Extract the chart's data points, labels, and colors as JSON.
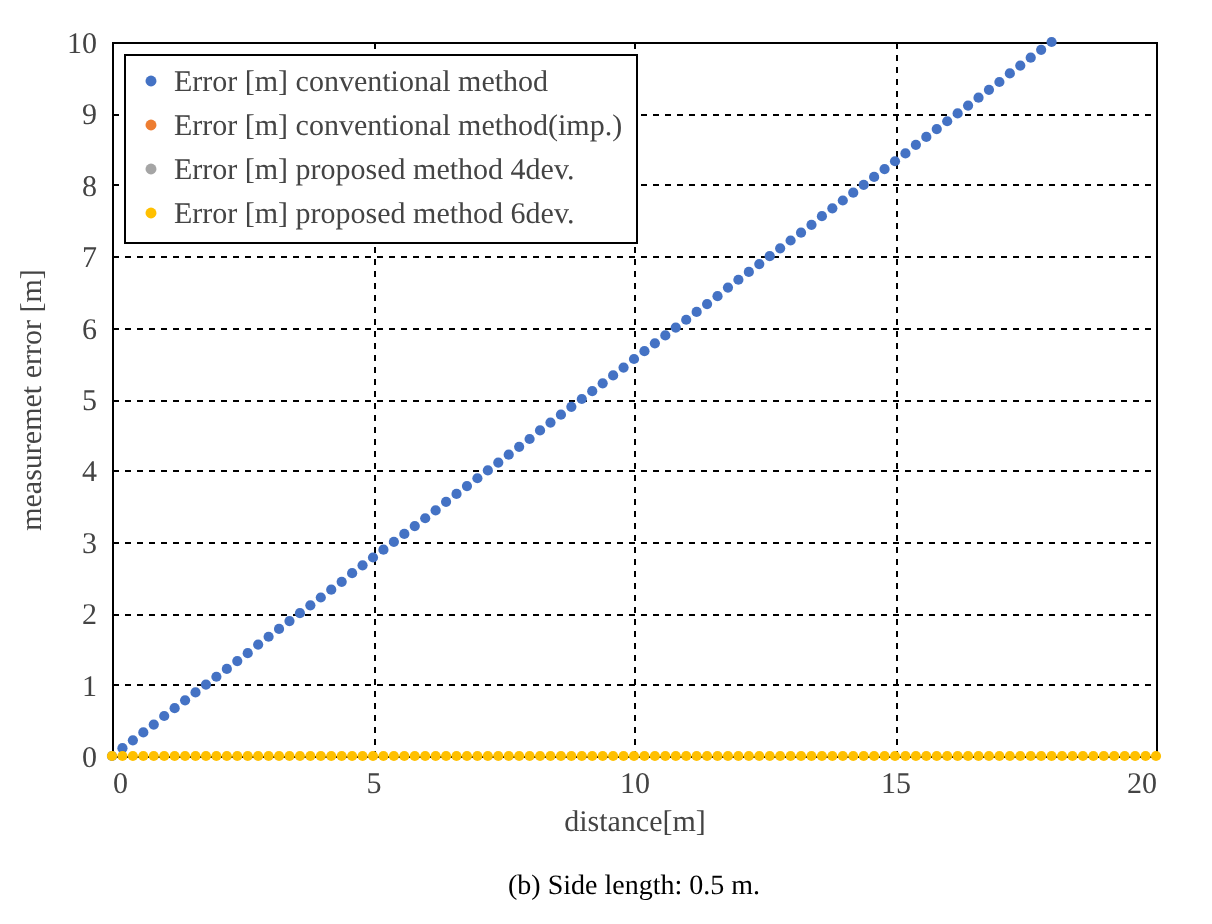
{
  "chart_data": {
    "type": "scatter",
    "xlabel": "distance[m]",
    "ylabel": "measuremet error [m]",
    "annotations": [
      "(b) Side length: 0.5 m."
    ],
    "x": [
      0,
      0.2,
      0.4,
      0.6,
      0.8,
      1,
      1.2,
      1.4,
      1.6,
      1.8,
      2,
      2.2,
      2.4,
      2.6,
      2.8,
      3,
      3.2,
      3.4,
      3.6,
      3.8,
      4,
      4.2,
      4.4,
      4.6,
      4.8,
      5,
      5.2,
      5.4,
      5.6,
      5.8,
      6,
      6.2,
      6.4,
      6.6,
      6.8,
      7,
      7.2,
      7.4,
      7.6,
      7.8,
      8,
      8.2,
      8.4,
      8.6,
      8.8,
      9,
      9.2,
      9.4,
      9.6,
      9.8,
      10,
      10.2,
      10.4,
      10.6,
      10.8,
      11,
      11.2,
      11.4,
      11.6,
      11.8,
      12,
      12.2,
      12.4,
      12.6,
      12.8,
      13,
      13.2,
      13.4,
      13.6,
      13.8,
      14,
      14.2,
      14.4,
      14.6,
      14.8,
      15,
      15.2,
      15.4,
      15.6,
      15.8,
      16,
      16.2,
      16.4,
      16.6,
      16.8,
      17,
      17.2,
      17.4,
      17.6,
      17.8,
      18,
      18.2,
      18.4,
      18.6,
      18.8,
      19,
      19.2,
      19.4,
      19.6,
      19.8,
      20
    ],
    "series": [
      {
        "name": "Error [m] conventional method",
        "color": "#4472c4",
        "values": [
          0,
          0.11,
          0.22,
          0.33,
          0.44,
          0.56,
          0.67,
          0.78,
          0.89,
          1,
          1.11,
          1.22,
          1.33,
          1.44,
          1.56,
          1.67,
          1.78,
          1.89,
          2,
          2.11,
          2.22,
          2.33,
          2.44,
          2.56,
          2.67,
          2.78,
          2.89,
          3,
          3.11,
          3.22,
          3.33,
          3.44,
          3.56,
          3.67,
          3.78,
          3.89,
          4,
          4.11,
          4.22,
          4.33,
          4.44,
          4.56,
          4.67,
          4.78,
          4.89,
          5,
          5.11,
          5.22,
          5.33,
          5.44,
          5.56,
          5.67,
          5.78,
          5.89,
          6,
          6.11,
          6.22,
          6.33,
          6.44,
          6.56,
          6.67,
          6.78,
          6.89,
          7,
          7.11,
          7.22,
          7.33,
          7.44,
          7.56,
          7.67,
          7.78,
          7.89,
          8,
          8.11,
          8.22,
          8.33,
          8.44,
          8.56,
          8.67,
          8.78,
          8.89,
          9,
          9.11,
          9.22,
          9.33,
          9.44,
          9.56,
          9.67,
          9.78,
          9.89,
          10,
          null,
          null,
          null,
          null,
          null,
          null,
          null,
          null,
          null,
          null
        ]
      },
      {
        "name": "Error [m] conventional method(imp.)",
        "color": "#ed7d31",
        "values": [
          null,
          null,
          null,
          null,
          null,
          null,
          null,
          null,
          null,
          null,
          null,
          null,
          null,
          null,
          null,
          null,
          null,
          null,
          null,
          null,
          null,
          null,
          null,
          null,
          null,
          null,
          null,
          null,
          null,
          null,
          null,
          null,
          null,
          null,
          null,
          null,
          null,
          null,
          null,
          null,
          null,
          null,
          null,
          null,
          null,
          null,
          null,
          null,
          null,
          null,
          null,
          null,
          null,
          null,
          null,
          null,
          null,
          null,
          null,
          null,
          null,
          null,
          null,
          null,
          null,
          null,
          null,
          null,
          null,
          null,
          null,
          null,
          null,
          null,
          null,
          null,
          null,
          null,
          null,
          null,
          null,
          null,
          null,
          null,
          null,
          null,
          null,
          null,
          null,
          null,
          null,
          null,
          null,
          null,
          null,
          null,
          null,
          null,
          null,
          null,
          null
        ]
      },
      {
        "name": "Error [m] proposed method 4dev.",
        "color": "#a5a5a5",
        "values": [
          null,
          null,
          null,
          null,
          null,
          null,
          null,
          null,
          null,
          null,
          null,
          null,
          null,
          null,
          null,
          null,
          null,
          null,
          null,
          null,
          null,
          null,
          null,
          null,
          null,
          null,
          null,
          null,
          null,
          null,
          null,
          null,
          null,
          null,
          null,
          null,
          null,
          null,
          null,
          null,
          null,
          null,
          null,
          null,
          null,
          null,
          null,
          null,
          null,
          null,
          null,
          null,
          null,
          null,
          null,
          null,
          null,
          null,
          null,
          null,
          null,
          null,
          null,
          null,
          null,
          null,
          null,
          null,
          null,
          null,
          null,
          null,
          null,
          null,
          null,
          null,
          null,
          null,
          null,
          null,
          null,
          null,
          null,
          null,
          null,
          null,
          null,
          null,
          null,
          null,
          null,
          null,
          null,
          null,
          null,
          null,
          null,
          null,
          null,
          null,
          null
        ]
      },
      {
        "name": "Error [m] proposed method 6dev.",
        "color": "#ffc000",
        "values": [
          0,
          0,
          0,
          0,
          0,
          0,
          0,
          0,
          0,
          0,
          0,
          0,
          0,
          0,
          0,
          0,
          0,
          0,
          0,
          0,
          0,
          0,
          0,
          0,
          0,
          0,
          0,
          0,
          0,
          0,
          0,
          0,
          0,
          0,
          0,
          0,
          0,
          0,
          0,
          0,
          0,
          0,
          0,
          0,
          0,
          0,
          0,
          0,
          0,
          0,
          0,
          0,
          0,
          0,
          0,
          0,
          0,
          0,
          0,
          0,
          0,
          0,
          0,
          0,
          0,
          0,
          0,
          0,
          0,
          0,
          0,
          0,
          0,
          0,
          0,
          0,
          0,
          0,
          0,
          0,
          0,
          0,
          0,
          0,
          0,
          0,
          0,
          0,
          0,
          0,
          0,
          0,
          0,
          0,
          0,
          0,
          0,
          0,
          0,
          0,
          0
        ]
      }
    ],
    "xlim": [
      0,
      20
    ],
    "xticks": [
      0,
      5,
      10,
      15,
      20
    ],
    "ylim": [
      0,
      10
    ],
    "yticks": [
      0,
      1,
      2,
      3,
      4,
      5,
      6,
      7,
      8,
      9,
      10
    ],
    "grid": true,
    "legend": "top left",
    "marker": "circle"
  }
}
